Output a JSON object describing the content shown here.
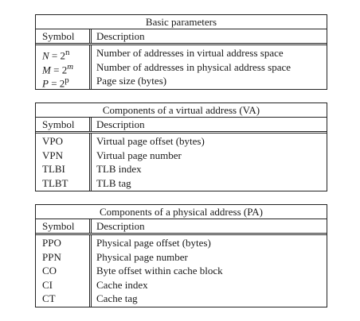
{
  "tables": [
    {
      "title": "Basic parameters",
      "header": {
        "symbol": "Symbol",
        "description": "Description"
      },
      "rows": [
        {
          "sym_var": "N",
          "sym_base": "2",
          "sym_exp": "n",
          "description": "Number of addresses in virtual address space"
        },
        {
          "sym_var": "M",
          "sym_base": "2",
          "sym_exp": "m",
          "description": "Number of addresses in physical address space"
        },
        {
          "sym_var": "P",
          "sym_base": "2",
          "sym_exp": "p",
          "description": "Page size (bytes)"
        }
      ]
    },
    {
      "title": "Components of a virtual address (VA)",
      "header": {
        "symbol": "Symbol",
        "description": "Description"
      },
      "rows": [
        {
          "symbol": "VPO",
          "description": "Virtual page offset (bytes)"
        },
        {
          "symbol": "VPN",
          "description": "Virtual page number"
        },
        {
          "symbol": "TLBI",
          "description": "TLB index"
        },
        {
          "symbol": "TLBT",
          "description": "TLB tag"
        }
      ]
    },
    {
      "title": "Components of a physical address (PA)",
      "header": {
        "symbol": "Symbol",
        "description": "Description"
      },
      "rows": [
        {
          "symbol": "PPO",
          "description": "Physical page offset (bytes)"
        },
        {
          "symbol": "PPN",
          "description": "Physical page number"
        },
        {
          "symbol": "CO",
          "description": "Byte offset within cache block"
        },
        {
          "symbol": "CI",
          "description": "Cache index"
        },
        {
          "symbol": "CT",
          "description": "Cache tag"
        }
      ]
    }
  ]
}
